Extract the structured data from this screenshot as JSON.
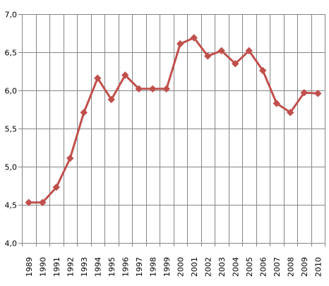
{
  "chart_data": {
    "type": "line",
    "title": "",
    "xlabel": "",
    "ylabel": "",
    "categories": [
      "1989",
      "1990",
      "1991",
      "1992",
      "1993",
      "1994",
      "1995",
      "1996",
      "1997",
      "1998",
      "1999",
      "2000",
      "2001",
      "2002",
      "2003",
      "2004",
      "2005",
      "2006",
      "2007",
      "2008",
      "2009",
      "2010"
    ],
    "series": [
      {
        "values": [
          4.53,
          4.53,
          4.73,
          5.11,
          5.71,
          6.16,
          5.88,
          6.2,
          6.02,
          6.02,
          6.02,
          6.61,
          6.69,
          6.45,
          6.52,
          6.35,
          6.52,
          6.26,
          5.83,
          5.71,
          5.97,
          5.96
        ],
        "color": "#C0504D"
      }
    ],
    "ylim": [
      4.0,
      7.0
    ],
    "yticks": [
      "4,0",
      "4,5",
      "5,0",
      "5,5",
      "6,0",
      "6,5",
      "7,0"
    ],
    "grid": true,
    "legend": "none",
    "axis_color": "#868686",
    "grid_color": "#868686"
  }
}
